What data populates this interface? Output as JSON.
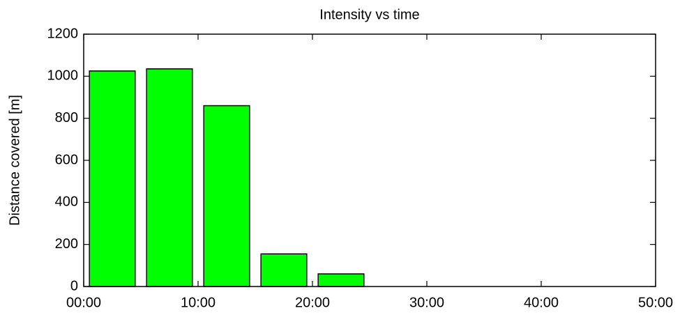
{
  "chart_data": {
    "type": "bar",
    "title": "Intensity vs time",
    "ylabel": "Distance covered [m]",
    "x": [
      2.5,
      7.5,
      12.5,
      17.5,
      22.5
    ],
    "values": [
      1025,
      1035,
      860,
      155,
      60
    ],
    "color": "#00ff00",
    "xlim": [
      0,
      50
    ],
    "xticks": [
      {
        "value": 0,
        "label": "00:00"
      },
      {
        "value": 10,
        "label": "10:00"
      },
      {
        "value": 20,
        "label": "20:00"
      },
      {
        "value": 30,
        "label": "30:00"
      },
      {
        "value": 40,
        "label": "40:00"
      },
      {
        "value": 50,
        "label": "50:00"
      }
    ],
    "ylim": [
      0,
      1200
    ],
    "yticks": [
      0,
      200,
      400,
      600,
      800,
      1000,
      1200
    ],
    "grid": false
  }
}
